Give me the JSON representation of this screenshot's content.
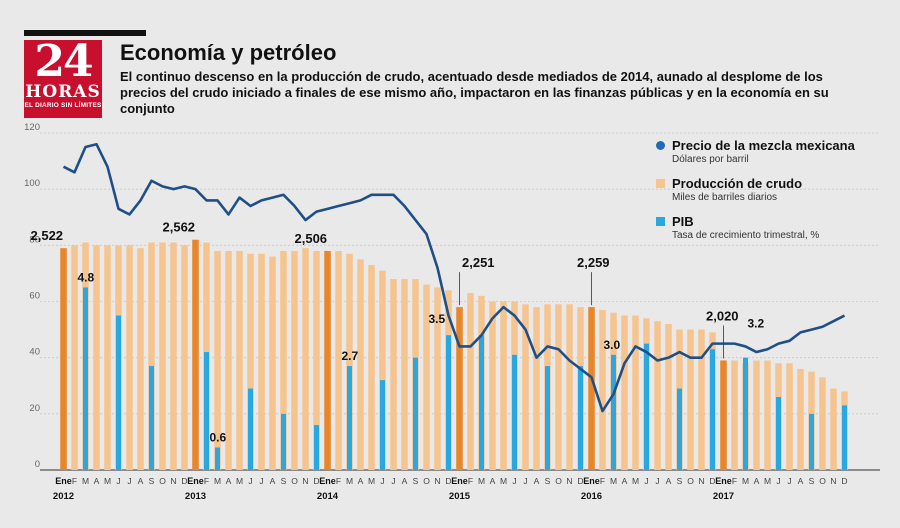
{
  "header": {
    "logo_number": "24",
    "logo_word": "HORAS",
    "logo_slogan": "EL DIARIO SIN LÍMITES",
    "title": "Economía y petróleo",
    "subtitle": "El continuo descenso en la producción de crudo, acentuado desde mediados de 2014, aunado al desplome de los precios del crudo iniciado a finales de ese mismo año, impactaron en las finanzas públicas y en la economía en su conjunto"
  },
  "legend": [
    {
      "name": "Precio de la mezcla mexicana",
      "unit": "Dólares por barril",
      "color": "#1f6bb5",
      "shape": "circle"
    },
    {
      "name": "Producción de crudo",
      "unit": "Miles de barriles diarios",
      "color": "#f6c48f",
      "shape": "square"
    },
    {
      "name": "PIB",
      "unit": "Tasa de crecimiento trimestral, %",
      "color": "#2aa7df",
      "shape": "square"
    }
  ],
  "colors": {
    "production": "#f6c48f",
    "production_highlight": "#e8862a",
    "gdp": "#2aa7df",
    "price": "#1f4f86"
  },
  "chart_data": {
    "type": "bar",
    "ylim": [
      0,
      120
    ],
    "yticks": [
      0,
      20,
      40,
      60,
      80,
      100,
      120
    ],
    "grid": true,
    "month_letters": [
      "E",
      "F",
      "M",
      "A",
      "M",
      "J",
      "J",
      "A",
      "S",
      "O",
      "N",
      "D"
    ],
    "year_labels": [
      "2012",
      "2013",
      "2014",
      "2015",
      "2016",
      "2017"
    ],
    "jan_label": "Ene",
    "production_annotations": [
      {
        "month_index": 0,
        "text": "2,522"
      },
      {
        "month_index": 12,
        "text": "2,562"
      },
      {
        "month_index": 24,
        "text": "2,506"
      },
      {
        "month_index": 36,
        "text": "2,251"
      },
      {
        "month_index": 48,
        "text": "2,259"
      },
      {
        "month_index": 60,
        "text": "2,020"
      }
    ],
    "gdp_annotations": [
      {
        "month_index": 2,
        "text": "4.8"
      },
      {
        "month_index": 14,
        "text": "0.6"
      },
      {
        "month_index": 26,
        "text": "2.7"
      },
      {
        "month_index": 35,
        "text": "3.5"
      },
      {
        "month_index": 50,
        "text": "3.0"
      },
      {
        "month_index": 62,
        "text": "3.2"
      }
    ],
    "series": [
      {
        "name": "Producción de crudo",
        "values": [
          79,
          80,
          81,
          80,
          80,
          80,
          80,
          79,
          81,
          81,
          81,
          80,
          82,
          81,
          78,
          78,
          78,
          77,
          77,
          76,
          78,
          78,
          79,
          78,
          78,
          78,
          77,
          75,
          73,
          71,
          68,
          68,
          68,
          66,
          65,
          64,
          58,
          63,
          62,
          60,
          60,
          60,
          59,
          58,
          59,
          59,
          59,
          58,
          58,
          57,
          56,
          55,
          55,
          54,
          53,
          52,
          50,
          50,
          50,
          49,
          39,
          39,
          38,
          39,
          39,
          38,
          38,
          36,
          35,
          33,
          29,
          28
        ],
        "highlight_indices": [
          0,
          12,
          24,
          36,
          48,
          60
        ]
      },
      {
        "name": "PIB",
        "values": [
          null,
          null,
          65,
          null,
          null,
          55,
          null,
          null,
          37,
          null,
          null,
          null,
          null,
          42,
          8,
          null,
          null,
          29,
          null,
          null,
          20,
          null,
          null,
          16,
          null,
          null,
          37,
          null,
          null,
          32,
          null,
          null,
          40,
          null,
          null,
          48,
          null,
          null,
          48,
          null,
          null,
          41,
          null,
          null,
          37,
          null,
          null,
          37,
          null,
          null,
          41,
          null,
          null,
          45,
          null,
          null,
          29,
          null,
          null,
          43,
          null,
          null,
          40,
          null,
          null,
          26,
          null,
          null,
          20,
          null,
          null,
          23
        ]
      },
      {
        "name": "Precio de la mezcla mexicana",
        "values": [
          108,
          106,
          115,
          116,
          108,
          93,
          91,
          96,
          103,
          101,
          100,
          101,
          100,
          96,
          96,
          91,
          97,
          94,
          96,
          97,
          98,
          94,
          89,
          92,
          93,
          94,
          95,
          96,
          98,
          98,
          98,
          94,
          89,
          84,
          72,
          55,
          44,
          44,
          48,
          54,
          58,
          55,
          50,
          40,
          44,
          43,
          39,
          36,
          33,
          21,
          27,
          38,
          44,
          42,
          39,
          40,
          42,
          40,
          40,
          45,
          45,
          45,
          44,
          42,
          43,
          45,
          46,
          49,
          50,
          51,
          53,
          55
        ]
      }
    ]
  }
}
